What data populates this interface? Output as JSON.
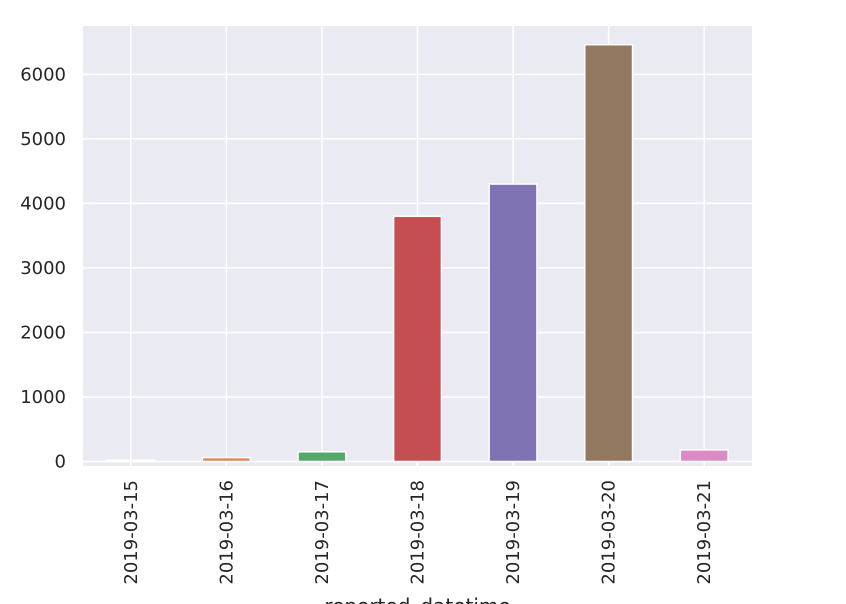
{
  "chart_data": {
    "type": "bar",
    "title": "",
    "xlabel": "reported_datetime",
    "ylabel": "",
    "categories": [
      "2019-03-15",
      "2019-03-16",
      "2019-03-17",
      "2019-03-18",
      "2019-03-19",
      "2019-03-20",
      "2019-03-21"
    ],
    "values": [
      20,
      60,
      150,
      3800,
      4300,
      6460,
      180
    ],
    "colors": [
      "#4c72b0",
      "#dd8452",
      "#55a868",
      "#c44e52",
      "#8172b3",
      "#937860",
      "#da8bc3"
    ],
    "ylim": [
      -70,
      6750
    ],
    "yticks": [
      0,
      1000,
      2000,
      3000,
      4000,
      5000,
      6000
    ],
    "grid": true,
    "legend": "none",
    "background": "#eaeaf2"
  }
}
